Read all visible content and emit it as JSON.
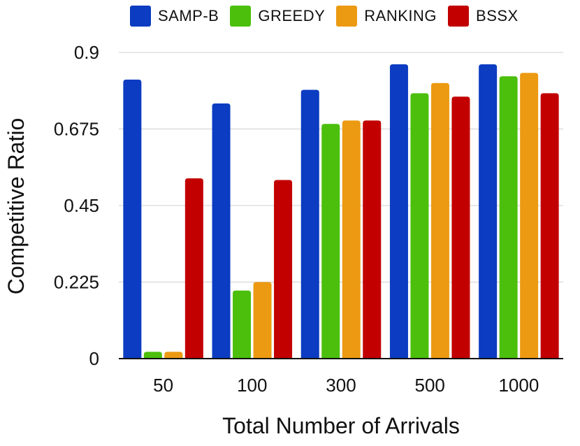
{
  "chart_data": {
    "type": "bar",
    "title": "",
    "xlabel": "Total Number of Arrivals",
    "ylabel": "Competitive Ratio",
    "categories": [
      "50",
      "100",
      "300",
      "500",
      "1000"
    ],
    "yticks": [
      0,
      0.225,
      0.45,
      0.675,
      0.9
    ],
    "ytick_labels": [
      "0",
      "0.225",
      "0.45",
      "0.675",
      "0.9"
    ],
    "ylim": [
      0,
      0.9
    ],
    "grid": true,
    "legend_position": "top",
    "series": [
      {
        "name": "SAMP-B",
        "color": "#0b3cc1",
        "values": [
          0.82,
          0.75,
          0.79,
          0.865,
          0.865
        ]
      },
      {
        "name": "GREEDY",
        "color": "#4cbf0c",
        "values": [
          0.02,
          0.2,
          0.69,
          0.78,
          0.83
        ]
      },
      {
        "name": "RANKING",
        "color": "#ec9a12",
        "values": [
          0.02,
          0.225,
          0.7,
          0.81,
          0.84
        ]
      },
      {
        "name": "BSSX",
        "color": "#c20000",
        "values": [
          0.53,
          0.525,
          0.7,
          0.77,
          0.78
        ]
      }
    ]
  }
}
